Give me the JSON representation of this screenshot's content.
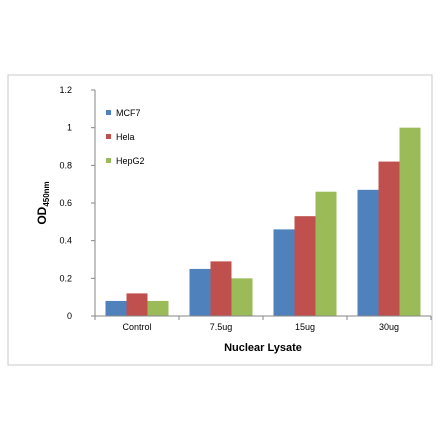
{
  "chart_data": {
    "type": "bar",
    "categories": [
      "Control",
      "7.5ug",
      "15ug",
      "30ug"
    ],
    "series": [
      {
        "name": "MCF7",
        "color": "#4f81bd",
        "values": [
          0.08,
          0.25,
          0.46,
          0.67
        ]
      },
      {
        "name": "Hela",
        "color": "#c0504d",
        "values": [
          0.12,
          0.29,
          0.53,
          0.82
        ]
      },
      {
        "name": "HepG2",
        "color": "#9bbb59",
        "values": [
          0.08,
          0.2,
          0.66,
          1.0
        ]
      }
    ],
    "xlabel": "Nuclear Lysate",
    "ylabel_main": "OD",
    "ylabel_sub": "450nm",
    "ylim": [
      0,
      1.2
    ],
    "yticks": [
      "0",
      "0.2",
      "0.4",
      "0.6",
      "0.8",
      "1",
      "1.2"
    ],
    "grid": false,
    "legend_position": "top-left inside plot"
  }
}
